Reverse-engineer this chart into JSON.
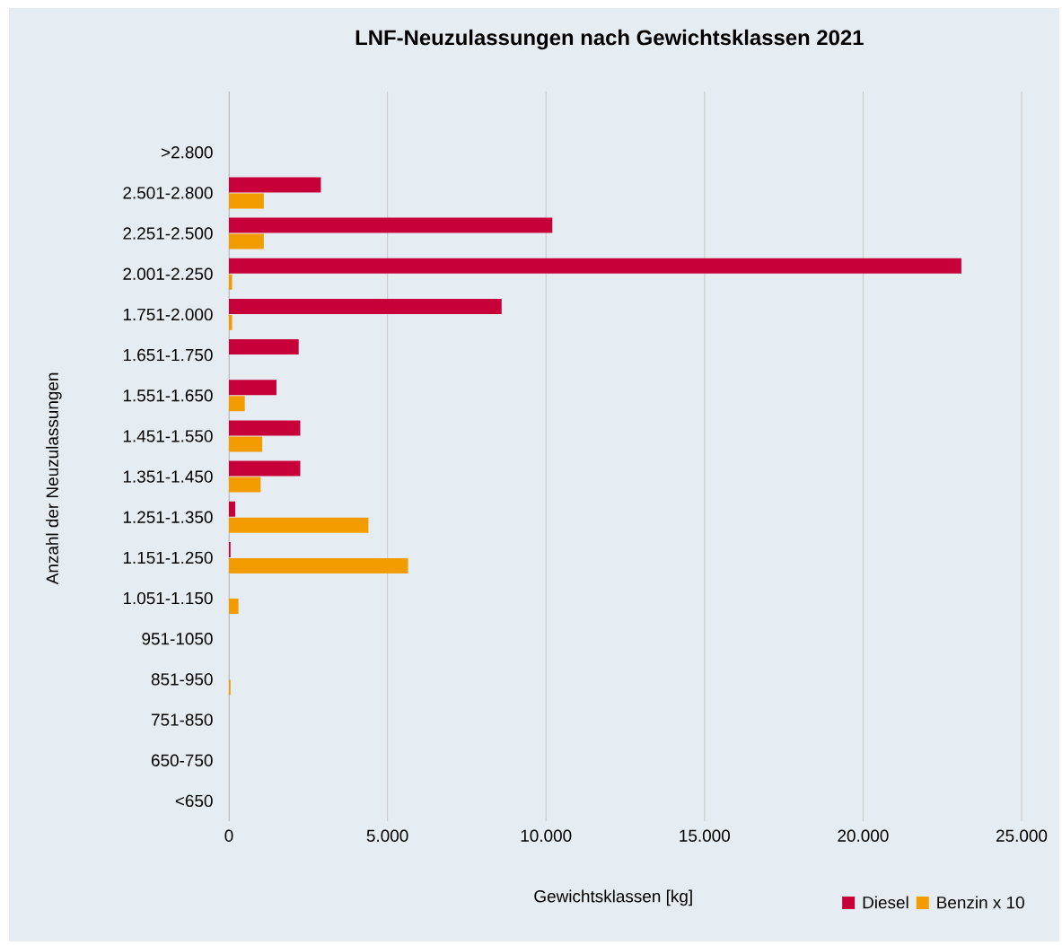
{
  "chart_data": {
    "type": "bar",
    "orientation": "horizontal",
    "title": "LNF-Neuzulassungen nach Gewichtsklassen 2021",
    "xlabel": "Gewichtsklassen [kg]",
    "ylabel": "Anzahl der Neuzulassungen",
    "categories": [
      null,
      ">2.800",
      "2.501-2.800",
      "2.251-2.500",
      "2.001-2.250",
      "1.751-2.000",
      "1.651-1.750",
      "1.551-1.650",
      "1.451-1.550",
      "1.351-1.450",
      "1.251-1.350",
      "1.151-1.250",
      "1.051-1.150",
      "951-1050",
      "851-950",
      "751-850",
      "650-750",
      "<650"
    ],
    "series": [
      {
        "name": "Diesel",
        "color": "#c8003a",
        "values": [
          0,
          0,
          2900,
          10200,
          23100,
          8600,
          2200,
          1500,
          2250,
          2250,
          200,
          50,
          0,
          0,
          0,
          0,
          0,
          0
        ]
      },
      {
        "name": "Benzin x 10",
        "color": "#f39c00",
        "values": [
          0,
          0,
          1100,
          1100,
          100,
          100,
          0,
          500,
          1050,
          1000,
          4400,
          5650,
          300,
          0,
          50,
          0,
          0,
          0
        ]
      }
    ],
    "xlim": [
      0,
      25000
    ],
    "xticks": [
      0,
      {
        "value": 5000,
        "label": "5.000"
      },
      {
        "value": 10000,
        "label": "10.000"
      },
      {
        "value": 15000,
        "label": "15.000"
      },
      {
        "value": 20000,
        "label": "20.000"
      },
      {
        "value": 25000,
        "label": "25.000"
      }
    ],
    "grid": "x",
    "legend": "bottom right"
  }
}
